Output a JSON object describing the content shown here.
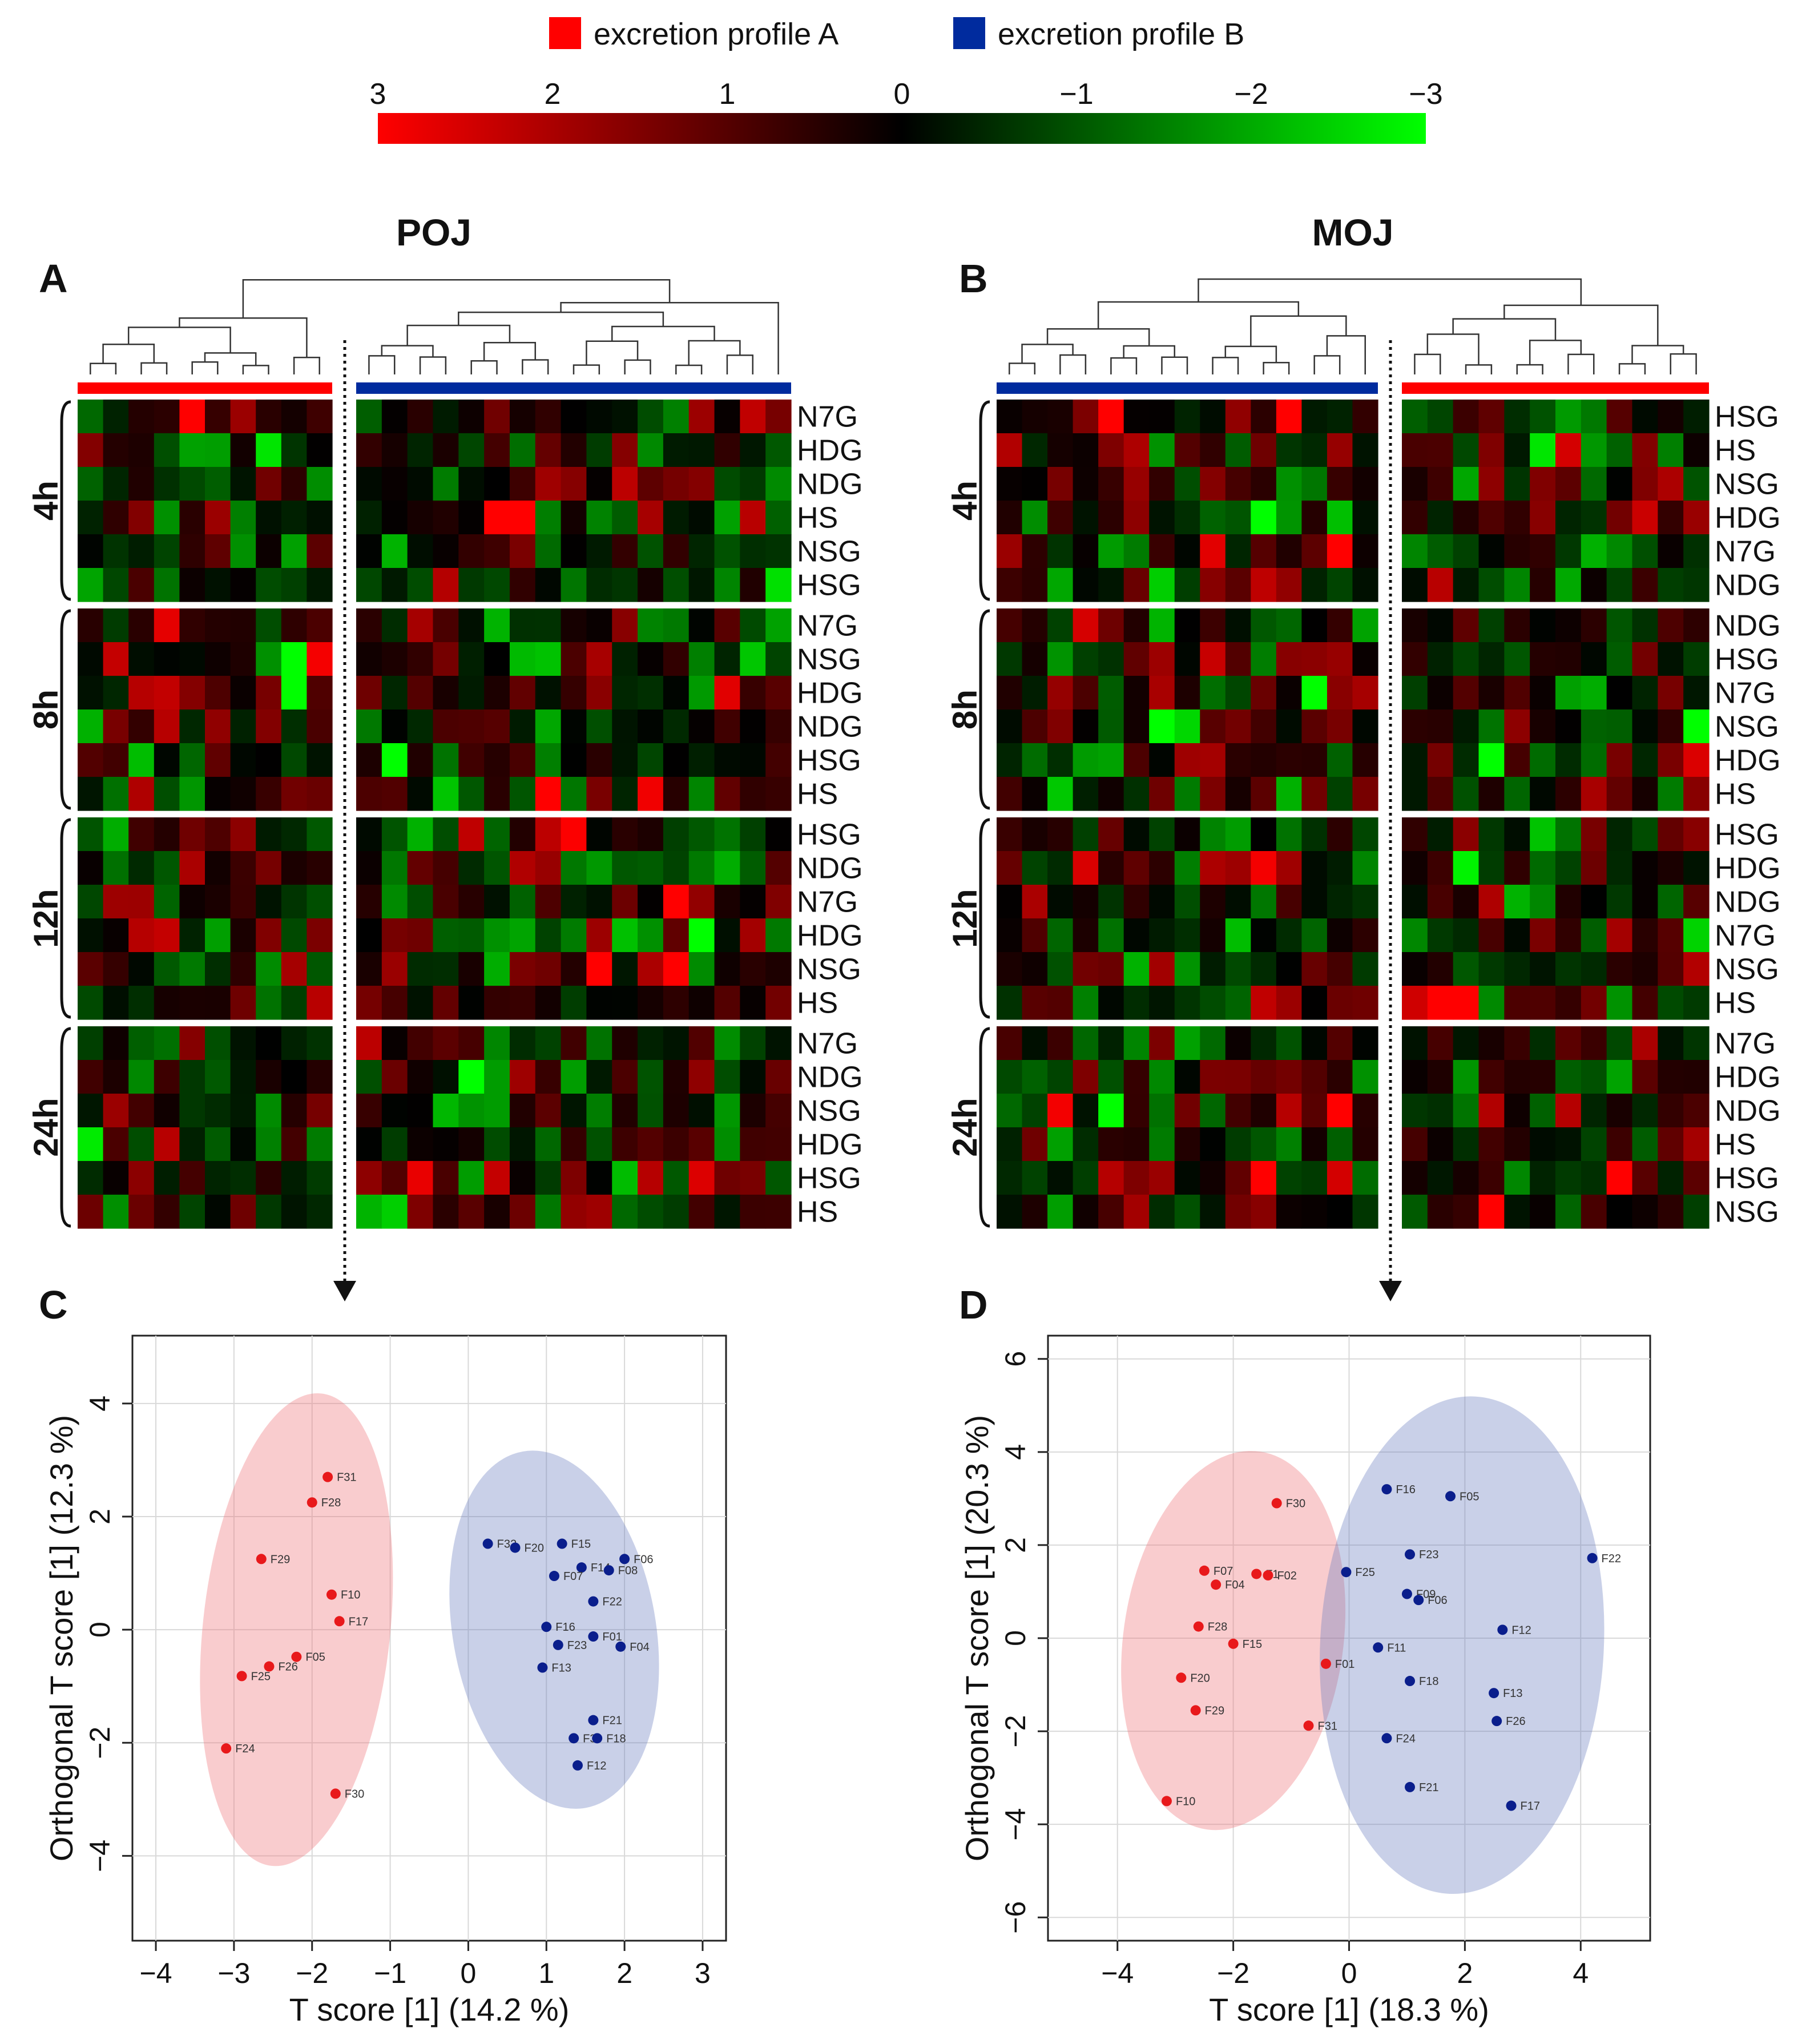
{
  "legend": {
    "profile_a": "excretion profile A",
    "profile_b": "excretion profile B",
    "color_a": "#ff0000",
    "color_b": "#002b9e",
    "scale_ticks": [
      "3",
      "2",
      "1",
      "0",
      "−1",
      "−2",
      "−3"
    ],
    "scale_values": [
      3,
      2,
      1,
      0,
      -1,
      -2,
      -3
    ]
  },
  "panels": {
    "A": {
      "letter": "A",
      "title": "POJ"
    },
    "B": {
      "letter": "B",
      "title": "MOJ"
    },
    "C": {
      "letter": "C"
    },
    "D": {
      "letter": "D"
    }
  },
  "time_labels": [
    "4h",
    "8h",
    "12h",
    "24h"
  ],
  "chart_data": [
    {
      "type": "heatmap",
      "panel": "A",
      "title": "POJ",
      "column_groups": [
        {
          "profile": "A",
          "n_columns": 10
        },
        {
          "profile": "B",
          "n_columns": 17
        }
      ],
      "row_blocks": [
        {
          "time": "4h",
          "rows": [
            "N7G",
            "HDG",
            "NDG",
            "HS",
            "NSG",
            "HSG"
          ]
        },
        {
          "time": "8h",
          "rows": [
            "N7G",
            "NSG",
            "HDG",
            "NDG",
            "HSG",
            "HS"
          ]
        },
        {
          "time": "12h",
          "rows": [
            "HSG",
            "NDG",
            "N7G",
            "HDG",
            "NSG",
            "HS"
          ]
        },
        {
          "time": "24h",
          "rows": [
            "N7G",
            "NDG",
            "NSG",
            "HDG",
            "HSG",
            "HS"
          ]
        }
      ],
      "value_range": [
        -3,
        3
      ],
      "seed": 11
    },
    {
      "type": "heatmap",
      "panel": "B",
      "title": "MOJ",
      "column_groups": [
        {
          "profile": "B",
          "n_columns": 15
        },
        {
          "profile": "A",
          "n_columns": 12
        }
      ],
      "row_blocks": [
        {
          "time": "4h",
          "rows": [
            "HSG",
            "HS",
            "NSG",
            "HDG",
            "N7G",
            "NDG"
          ]
        },
        {
          "time": "8h",
          "rows": [
            "NDG",
            "HSG",
            "N7G",
            "NSG",
            "HDG",
            "HS"
          ]
        },
        {
          "time": "12h",
          "rows": [
            "HSG",
            "HDG",
            "NDG",
            "N7G",
            "NSG",
            "HS"
          ]
        },
        {
          "time": "24h",
          "rows": [
            "N7G",
            "HDG",
            "NDG",
            "HS",
            "HSG",
            "NSG"
          ]
        }
      ],
      "value_range": [
        -3,
        3
      ],
      "seed": 29
    },
    {
      "type": "scatter",
      "panel": "C",
      "xlabel": "T score [1] (14.2 %)",
      "ylabel": "Orthogonal T score [1] (12.3 %)",
      "xlim": [
        -4.3,
        3.3
      ],
      "ylim": [
        -5.5,
        5.2
      ],
      "xticks": [
        -4,
        -3,
        -2,
        -1,
        0,
        1,
        2,
        3
      ],
      "yticks": [
        -4,
        -2,
        0,
        2,
        4
      ],
      "series": [
        {
          "name": "excretion profile A",
          "color": "#e8191b",
          "points": [
            {
              "label": "F31",
              "x": -1.8,
              "y": 2.7
            },
            {
              "label": "F28",
              "x": -2.0,
              "y": 2.25
            },
            {
              "label": "F29",
              "x": -2.65,
              "y": 1.25
            },
            {
              "label": "F10",
              "x": -1.75,
              "y": 0.62
            },
            {
              "label": "F17",
              "x": -1.65,
              "y": 0.15
            },
            {
              "label": "F05",
              "x": -2.2,
              "y": -0.48
            },
            {
              "label": "F26",
              "x": -2.55,
              "y": -0.65
            },
            {
              "label": "F25",
              "x": -2.9,
              "y": -0.82
            },
            {
              "label": "F24",
              "x": -3.1,
              "y": -2.1
            },
            {
              "label": "F30",
              "x": -1.7,
              "y": -2.9
            }
          ],
          "ellipse": {
            "cx": -2.2,
            "cy": 0.0,
            "rx": 1.2,
            "ry": 4.2,
            "rotate_deg": 6
          }
        },
        {
          "name": "excretion profile B",
          "color": "#0a1e8c",
          "points": [
            {
              "label": "F32",
              "x": 0.25,
              "y": 1.52
            },
            {
              "label": "F20",
              "x": 0.6,
              "y": 1.45
            },
            {
              "label": "F15",
              "x": 1.2,
              "y": 1.52
            },
            {
              "label": "F06",
              "x": 2.0,
              "y": 1.25
            },
            {
              "label": "F14",
              "x": 1.45,
              "y": 1.1
            },
            {
              "label": "F08",
              "x": 1.8,
              "y": 1.05
            },
            {
              "label": "F07",
              "x": 1.1,
              "y": 0.95
            },
            {
              "label": "F22",
              "x": 1.6,
              "y": 0.5
            },
            {
              "label": "F16",
              "x": 1.0,
              "y": 0.05
            },
            {
              "label": "F01",
              "x": 1.6,
              "y": -0.12
            },
            {
              "label": "F23",
              "x": 1.15,
              "y": -0.27
            },
            {
              "label": "F04",
              "x": 1.95,
              "y": -0.3
            },
            {
              "label": "F13",
              "x": 0.95,
              "y": -0.67
            },
            {
              "label": "F21",
              "x": 1.6,
              "y": -1.6
            },
            {
              "label": "F3",
              "x": 1.35,
              "y": -1.92
            },
            {
              "label": "F18",
              "x": 1.65,
              "y": -1.92
            },
            {
              "label": "F12",
              "x": 1.4,
              "y": -2.4
            }
          ],
          "ellipse": {
            "cx": 1.1,
            "cy": 0.0,
            "rx": 1.3,
            "ry": 3.2,
            "rotate_deg": -10
          }
        }
      ]
    },
    {
      "type": "scatter",
      "panel": "D",
      "xlabel": "T score [1] (18.3 %)",
      "ylabel": "Orthogonal T score [1] (20.3 %)",
      "xlim": [
        -5.2,
        5.2
      ],
      "ylim": [
        -6.5,
        6.5
      ],
      "xticks": [
        -4,
        -2,
        0,
        2,
        4
      ],
      "yticks": [
        -6,
        -4,
        -2,
        0,
        2,
        4,
        6
      ],
      "series": [
        {
          "name": "excretion profile A",
          "color": "#e8191b",
          "points": [
            {
              "label": "F30",
              "x": -1.25,
              "y": 2.9
            },
            {
              "label": "F07",
              "x": -2.5,
              "y": 1.45
            },
            {
              "label": "F04",
              "x": -2.3,
              "y": 1.15
            },
            {
              "label": "F1",
              "x": -1.6,
              "y": 1.38
            },
            {
              "label": "F02",
              "x": -1.4,
              "y": 1.35
            },
            {
              "label": "F28",
              "x": -2.6,
              "y": 0.25
            },
            {
              "label": "F15",
              "x": -2.0,
              "y": -0.12
            },
            {
              "label": "F01",
              "x": -0.4,
              "y": -0.55
            },
            {
              "label": "F20",
              "x": -2.9,
              "y": -0.85
            },
            {
              "label": "F29",
              "x": -2.65,
              "y": -1.55
            },
            {
              "label": "F31",
              "x": -0.7,
              "y": -1.88
            },
            {
              "label": "F10",
              "x": -3.15,
              "y": -3.5
            }
          ],
          "ellipse": {
            "cx": -2.0,
            "cy": -0.05,
            "rx": 1.9,
            "ry": 4.1,
            "rotate_deg": 8
          }
        },
        {
          "name": "excretion profile B",
          "color": "#0a1e8c",
          "points": [
            {
              "label": "F16",
              "x": 0.65,
              "y": 3.2
            },
            {
              "label": "F05",
              "x": 1.75,
              "y": 3.05
            },
            {
              "label": "F23",
              "x": 1.05,
              "y": 1.8
            },
            {
              "label": "F22",
              "x": 4.2,
              "y": 1.72
            },
            {
              "label": "F25",
              "x": -0.05,
              "y": 1.42
            },
            {
              "label": "F09",
              "x": 1.0,
              "y": 0.95
            },
            {
              "label": "F06",
              "x": 1.2,
              "y": 0.82
            },
            {
              "label": "F12",
              "x": 2.65,
              "y": 0.18
            },
            {
              "label": "F11",
              "x": 0.5,
              "y": -0.2
            },
            {
              "label": "F18",
              "x": 1.05,
              "y": -0.92
            },
            {
              "label": "F13",
              "x": 2.5,
              "y": -1.18
            },
            {
              "label": "F26",
              "x": 2.55,
              "y": -1.78
            },
            {
              "label": "F24",
              "x": 0.65,
              "y": -2.15
            },
            {
              "label": "F21",
              "x": 1.05,
              "y": -3.2
            },
            {
              "label": "F17",
              "x": 2.8,
              "y": -3.6
            }
          ],
          "ellipse": {
            "cx": 1.95,
            "cy": -0.15,
            "rx": 2.45,
            "ry": 5.35,
            "rotate_deg": 3
          }
        }
      ]
    }
  ]
}
